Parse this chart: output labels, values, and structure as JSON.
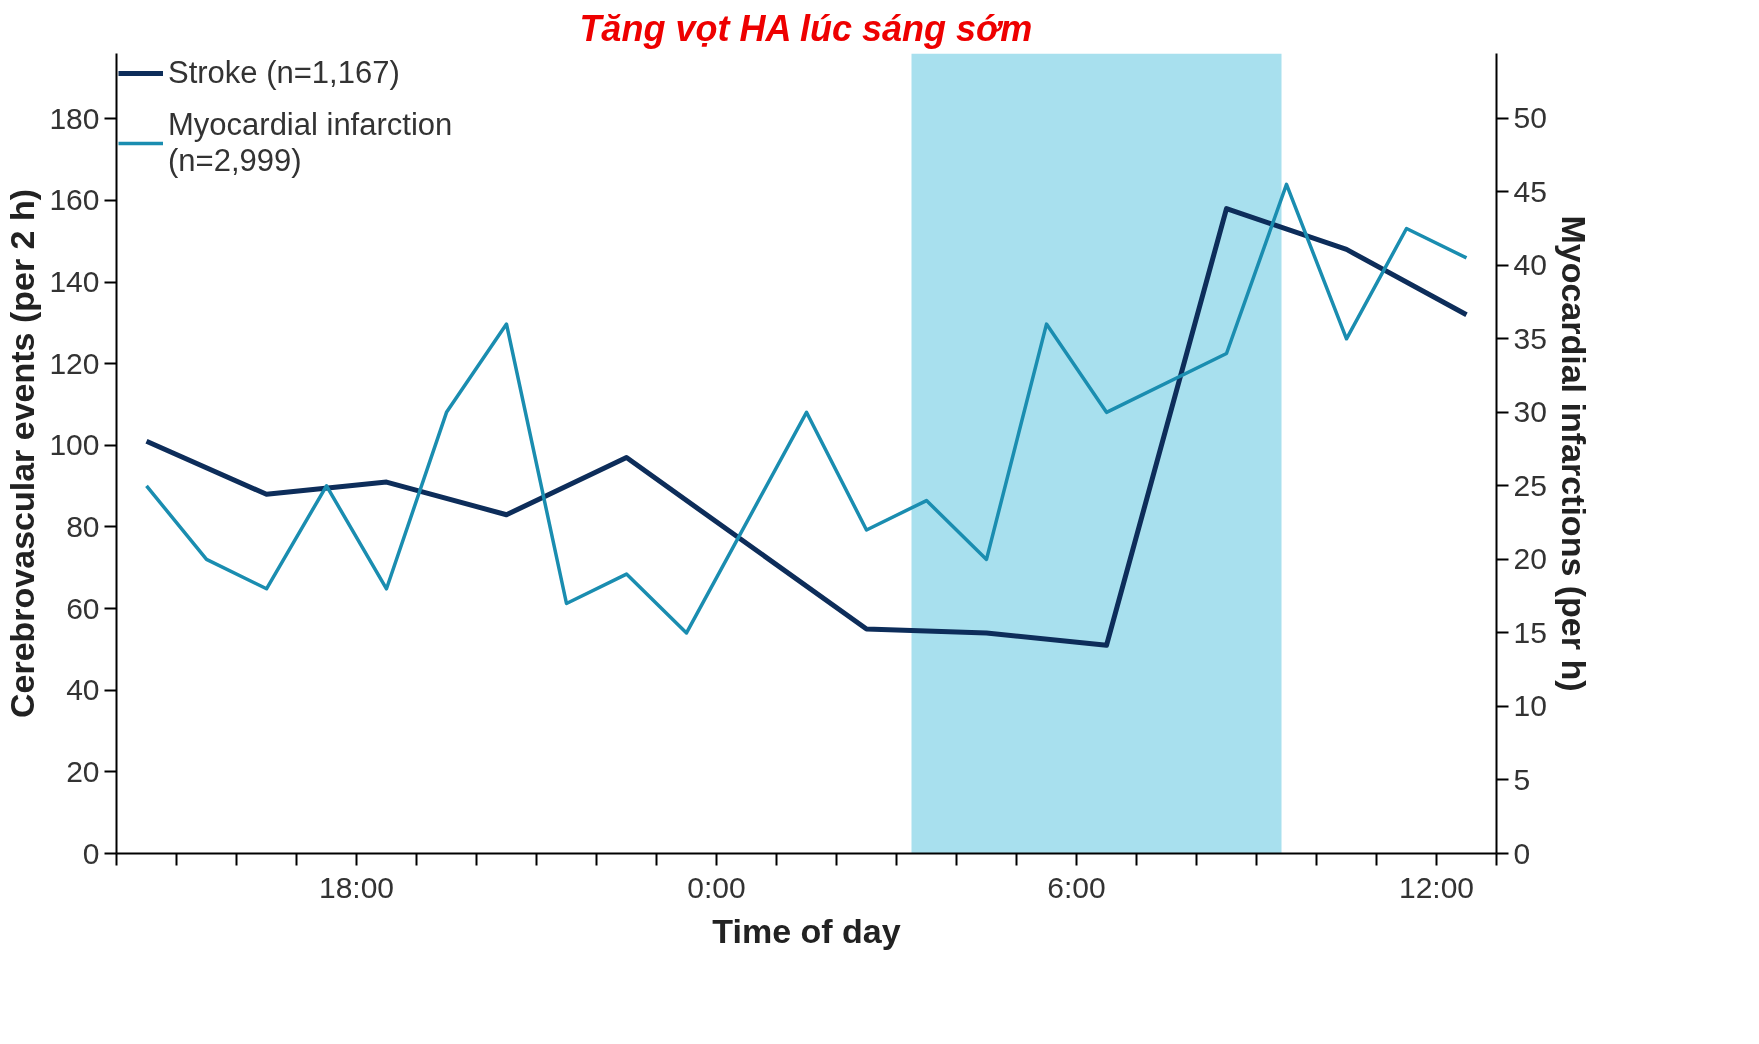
{
  "chart_data": {
    "type": "line",
    "xlabel": "Time of day",
    "ylabel": "Cerebrovascular events (per 2 h)",
    "y2label": "Myocardial infarctions (per h)",
    "xlim": [
      "2000-01-01T14:00",
      "2000-01-02T13:00"
    ],
    "ylim": [
      0,
      196
    ],
    "y2lim": [
      0,
      54.4
    ],
    "xticks": [
      {
        "value": "2000-01-01T14:00",
        "label": null
      },
      {
        "value": "2000-01-01T15:00",
        "label": null
      },
      {
        "value": "2000-01-01T16:00",
        "label": null
      },
      {
        "value": "2000-01-01T17:00",
        "label": null
      },
      {
        "value": "2000-01-01T18:00",
        "label": "18:00"
      },
      {
        "value": "2000-01-01T19:00",
        "label": null
      },
      {
        "value": "2000-01-01T20:00",
        "label": null
      },
      {
        "value": "2000-01-01T21:00",
        "label": null
      },
      {
        "value": "2000-01-01T22:00",
        "label": null
      },
      {
        "value": "2000-01-01T23:00",
        "label": null
      },
      {
        "value": "2000-01-02T00:00",
        "label": "0:00"
      },
      {
        "value": "2000-01-02T01:00",
        "label": null
      },
      {
        "value": "2000-01-02T02:00",
        "label": null
      },
      {
        "value": "2000-01-02T03:00",
        "label": null
      },
      {
        "value": "2000-01-02T04:00",
        "label": null
      },
      {
        "value": "2000-01-02T05:00",
        "label": null
      },
      {
        "value": "2000-01-02T06:00",
        "label": "6:00"
      },
      {
        "value": "2000-01-02T07:00",
        "label": null
      },
      {
        "value": "2000-01-02T08:00",
        "label": null
      },
      {
        "value": "2000-01-02T09:00",
        "label": null
      },
      {
        "value": "2000-01-02T10:00",
        "label": null
      },
      {
        "value": "2000-01-02T11:00",
        "label": null
      },
      {
        "value": "2000-01-02T12:00",
        "label": "12:00"
      },
      {
        "value": "2000-01-02T13:00",
        "label": null
      }
    ],
    "yticks": [
      0,
      20,
      40,
      60,
      80,
      100,
      120,
      140,
      160,
      180
    ],
    "y2ticks": [
      0,
      5,
      10,
      15,
      20,
      25,
      30,
      35,
      40,
      45,
      50
    ],
    "grid": false,
    "legend": "top left",
    "marker": "none",
    "line_style": "solid",
    "bands": [
      {
        "axis": "x",
        "from": "2000-01-02T03:15",
        "to": "2000-01-02T09:25",
        "label": "Tăng vọt HA lúc sáng sớm",
        "color": "#a8e0ee"
      }
    ],
    "series": [
      {
        "name": "Stroke (n=1,167)",
        "color": "#0d2d5a",
        "x": [
          "2000-01-01T14:30",
          "2000-01-01T16:30",
          "2000-01-01T18:30",
          "2000-01-01T20:30",
          "2000-01-01T22:30",
          "2000-01-02T02:30",
          "2000-01-02T04:30",
          "2000-01-02T06:30",
          "2000-01-02T08:30",
          "2000-01-02T10:30",
          "2000-01-02T12:30"
        ],
        "values": [
          101,
          88,
          91,
          83,
          97,
          55,
          54,
          51,
          158,
          148,
          132
        ]
      },
      {
        "name": "Myocardial infarction\n(n=2,999)",
        "color": "#1a8db0",
        "axis": "y2",
        "x": [
          "2000-01-01T14:30",
          "2000-01-01T15:30",
          "2000-01-01T16:30",
          "2000-01-01T17:30",
          "2000-01-01T18:30",
          "2000-01-01T19:30",
          "2000-01-01T20:30",
          "2000-01-01T21:30",
          "2000-01-01T22:30",
          "2000-01-01T23:30",
          "2000-01-02T01:30",
          "2000-01-02T02:30",
          "2000-01-02T03:30",
          "2000-01-02T04:30",
          "2000-01-02T05:30",
          "2000-01-02T06:30",
          "2000-01-02T08:30",
          "2000-01-02T09:30",
          "2000-01-02T10:30",
          "2000-01-02T11:30",
          "2000-01-02T12:30"
        ],
        "values": [
          25,
          20,
          18,
          25,
          18,
          30,
          36,
          17,
          19,
          15,
          30,
          22,
          24,
          20,
          36,
          30,
          34,
          45.5,
          35,
          42.5,
          40.5
        ]
      }
    ]
  }
}
